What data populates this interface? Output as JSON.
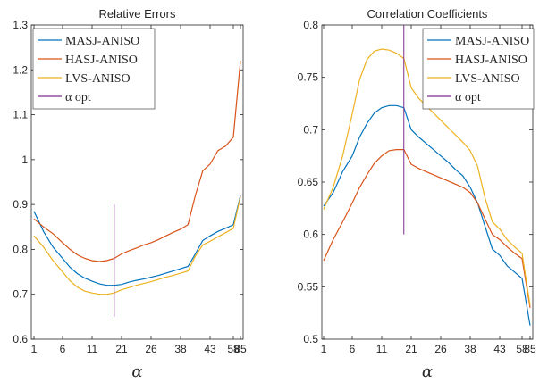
{
  "chart_data": [
    {
      "type": "line",
      "title": "Relative Errors",
      "xlabel": "α",
      "ylabel": "",
      "xticks": [
        "1",
        "6",
        "11",
        "21",
        "26",
        "38",
        "43",
        "58",
        "85"
      ],
      "ylim": [
        0.6,
        1.3
      ],
      "yticks": [
        "0.6",
        "0.7",
        "0.8",
        "0.9",
        "1",
        "1.1",
        "1.2",
        "1.3"
      ],
      "legend_position": "top-left",
      "grid": false,
      "series": [
        {
          "name": "MASJ-ANISO",
          "color": "#0072BD",
          "values": [
            0.885,
            0.84,
            0.805,
            0.78,
            0.76,
            0.746,
            0.736,
            0.729,
            0.723,
            0.72,
            0.72,
            0.722,
            0.727,
            0.731,
            0.734,
            0.738,
            0.742,
            0.747,
            0.752,
            0.757,
            0.762,
            0.79,
            0.82,
            0.83,
            0.84,
            0.847,
            0.855,
            0.92
          ]
        },
        {
          "name": "HASJ-ANISO",
          "color": "#D95319",
          "values": [
            0.868,
            0.85,
            0.835,
            0.815,
            0.8,
            0.788,
            0.78,
            0.775,
            0.773,
            0.775,
            0.78,
            0.79,
            0.797,
            0.803,
            0.81,
            0.815,
            0.822,
            0.83,
            0.838,
            0.845,
            0.855,
            0.92,
            0.975,
            0.99,
            1.02,
            1.03,
            1.05,
            1.22
          ]
        },
        {
          "name": "LVS-ANISO",
          "color": "#EDB120",
          "values": [
            0.83,
            0.805,
            0.775,
            0.75,
            0.73,
            0.716,
            0.707,
            0.703,
            0.7,
            0.7,
            0.703,
            0.71,
            0.715,
            0.72,
            0.724,
            0.728,
            0.733,
            0.738,
            0.742,
            0.747,
            0.752,
            0.785,
            0.81,
            0.818,
            0.828,
            0.837,
            0.847,
            0.918
          ]
        }
      ],
      "opt_line": {
        "name": "α opt",
        "color": "#7E2F8E",
        "x_index": 10,
        "y_range": [
          0.65,
          0.9
        ]
      }
    },
    {
      "type": "line",
      "title": "Correlation Coefficients",
      "xlabel": "α",
      "ylabel": "",
      "xticks": [
        "1",
        "6",
        "11",
        "21",
        "26",
        "38",
        "43",
        "58",
        "85"
      ],
      "ylim": [
        0.5,
        0.8
      ],
      "yticks": [
        "0.5",
        "0.55",
        "0.6",
        "0.65",
        "0.7",
        "0.75",
        "0.8"
      ],
      "legend_position": "top-right",
      "grid": false,
      "series": [
        {
          "name": "MASJ-ANISO",
          "color": "#0072BD",
          "values": [
            0.627,
            0.64,
            0.66,
            0.675,
            0.693,
            0.706,
            0.716,
            0.721,
            0.723,
            0.723,
            0.721,
            0.7,
            0.693,
            0.687,
            0.681,
            0.675,
            0.669,
            0.662,
            0.656,
            0.645,
            0.63,
            0.608,
            0.586,
            0.58,
            0.57,
            0.564,
            0.558,
            0.513
          ]
        },
        {
          "name": "HASJ-ANISO",
          "color": "#D95319",
          "values": [
            0.575,
            0.595,
            0.612,
            0.63,
            0.645,
            0.657,
            0.668,
            0.675,
            0.68,
            0.681,
            0.681,
            0.667,
            0.663,
            0.66,
            0.657,
            0.654,
            0.651,
            0.648,
            0.645,
            0.64,
            0.63,
            0.615,
            0.6,
            0.595,
            0.588,
            0.582,
            0.577,
            0.53
          ]
        },
        {
          "name": "LVS-ANISO",
          "color": "#EDB120",
          "values": [
            0.624,
            0.645,
            0.675,
            0.715,
            0.748,
            0.767,
            0.775,
            0.777,
            0.776,
            0.773,
            0.768,
            0.74,
            0.73,
            0.723,
            0.716,
            0.709,
            0.702,
            0.695,
            0.688,
            0.68,
            0.665,
            0.635,
            0.612,
            0.605,
            0.595,
            0.588,
            0.582,
            0.532
          ]
        }
      ],
      "opt_line": {
        "name": "α opt",
        "color": "#7E2F8E",
        "x_index": 10,
        "y_range": [
          0.6,
          0.8
        ]
      }
    }
  ]
}
